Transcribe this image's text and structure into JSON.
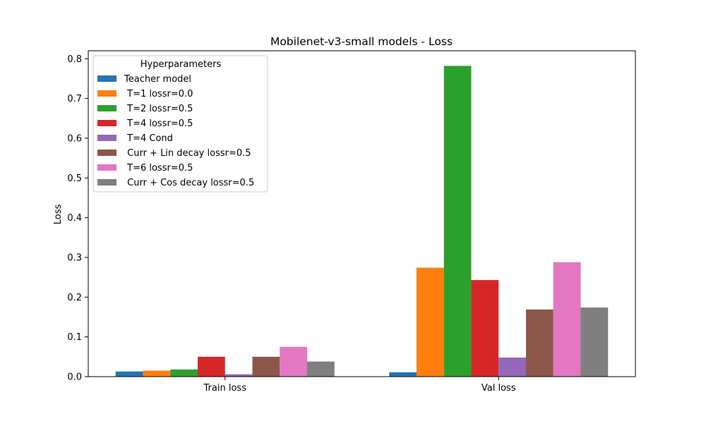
{
  "chart_data": {
    "type": "bar",
    "title": "Mobilenet-v3-small models - Loss",
    "xlabel": "",
    "ylabel": "Loss",
    "categories": [
      "Train loss",
      "Val loss"
    ],
    "ylim": [
      0,
      0.82
    ],
    "yticks": [
      0.0,
      0.1,
      0.2,
      0.3,
      0.4,
      0.5,
      0.6,
      0.7,
      0.8
    ],
    "ytick_labels": [
      "0.0",
      "0.1",
      "0.2",
      "0.3",
      "0.4",
      "0.5",
      "0.6",
      "0.7",
      "0.8"
    ],
    "grid": false,
    "legend": {
      "title": "Hyperparameters",
      "placement": "upper-left"
    },
    "series": [
      {
        "name": "Teacher model",
        "color": "#1f77b4",
        "values": [
          0.013,
          0.011
        ]
      },
      {
        "name": " T=1 lossr=0.0",
        "color": "#ff7f0e",
        "values": [
          0.015,
          0.274
        ]
      },
      {
        "name": " T=2 lossr=0.5",
        "color": "#2ca02c",
        "values": [
          0.018,
          0.782
        ]
      },
      {
        "name": " T=4 lossr=0.5",
        "color": "#d62728",
        "values": [
          0.05,
          0.243
        ]
      },
      {
        "name": " T=4 Cond",
        "color": "#9467bd",
        "values": [
          0.006,
          0.048
        ]
      },
      {
        "name": " Curr + Lin decay lossr=0.5",
        "color": "#8c564b",
        "values": [
          0.05,
          0.169
        ]
      },
      {
        "name": " T=6 lossr=0.5",
        "color": "#e377c2",
        "values": [
          0.075,
          0.288
        ]
      },
      {
        "name": " Curr + Cos decay lossr=0.5",
        "color": "#7f7f7f",
        "values": [
          0.038,
          0.174
        ]
      }
    ]
  }
}
